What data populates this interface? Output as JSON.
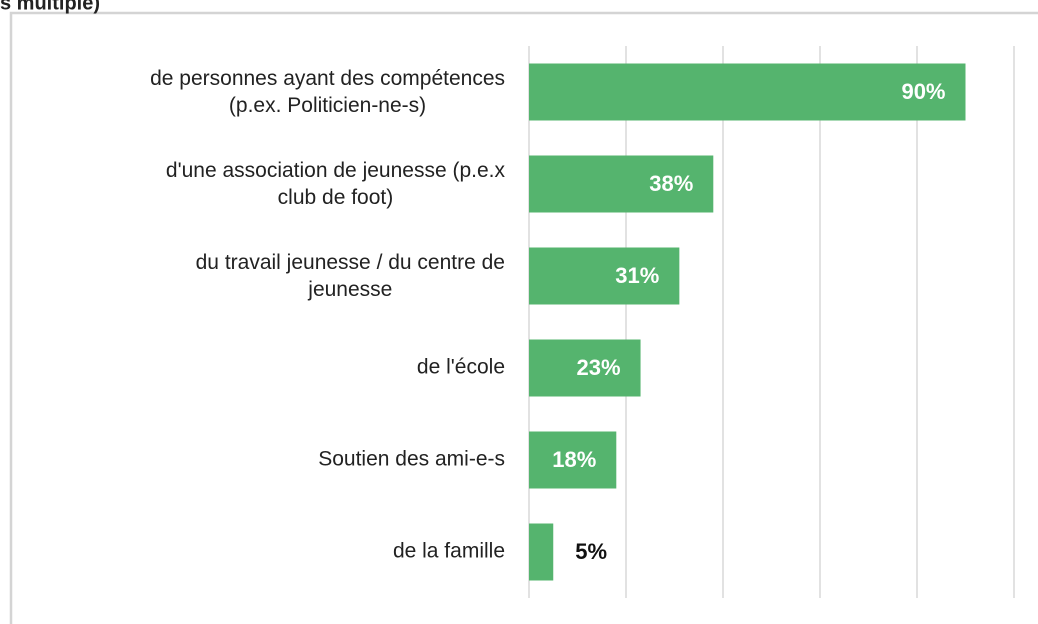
{
  "chart_data": {
    "type": "barh",
    "title": "s multiple)",
    "categories": [
      "de personnes ayant des compétences\n(p.ex. Politicien-ne-s)",
      "d'une association de jeunesse (p.e.x\nclub de foot)",
      "du travail jeunesse / du centre de\njeunesse",
      "de l'école",
      "Soutien des ami-e-s",
      "de la famille"
    ],
    "values": [
      90,
      38,
      31,
      23,
      18,
      5
    ],
    "value_labels": [
      "90%",
      "38%",
      "31%",
      "23%",
      "18%",
      "5%"
    ],
    "color": "#55b46e",
    "xlim": [
      0,
      100
    ],
    "xticks": [
      0,
      20,
      40,
      60,
      80,
      100
    ],
    "grid": true
  }
}
